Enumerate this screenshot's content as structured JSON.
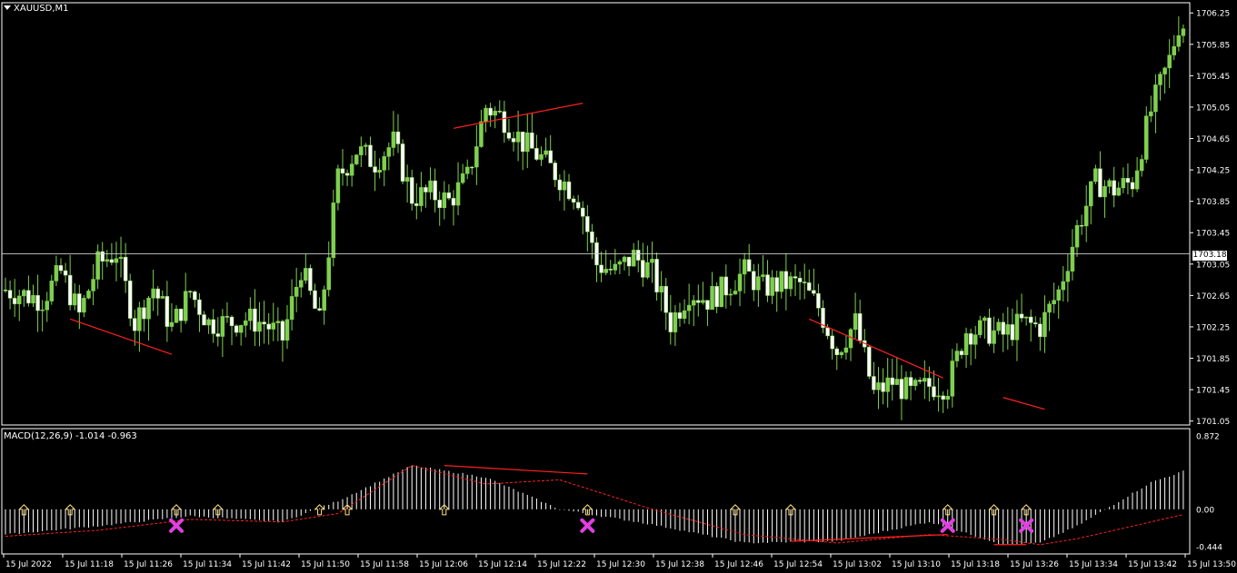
{
  "window": {
    "symbol_title": "XAUUSD,M1",
    "macd_title": "MACD(12,26,9) -1.014 -0.963",
    "current_price_label": "1703.18"
  },
  "colors": {
    "background": "#000000",
    "frame": "#ffffff",
    "grid": "#ffffff",
    "bull_candle": "#7fd04f",
    "bear_candle": "#ffffff",
    "wick": "#7fd04f",
    "divergence_line": "#ff2020",
    "signal_line": "#ff2020",
    "histogram": "#ffffff",
    "cross_marker": "#e040e0",
    "arrow_marker": "#ffe080",
    "current_price_line": "#cccccc"
  },
  "chart_data": [
    {
      "type": "candlestick",
      "title": "XAUUSD,M1",
      "y_ticks": [
        "1706.25",
        "1705.85",
        "1705.45",
        "1705.05",
        "1704.65",
        "1704.25",
        "1703.85",
        "1703.45",
        "1703.05",
        "1702.65",
        "1702.25",
        "1701.85",
        "1701.45",
        "1701.05"
      ],
      "ylim": [
        1701.0,
        1706.38
      ],
      "current_price": 1703.18,
      "x_tick_labels": [
        "15 Jul 2022",
        "15 Jul 11:18",
        "15 Jul 11:26",
        "15 Jul 11:34",
        "15 Jul 11:42",
        "15 Jul 11:50",
        "15 Jul 11:58",
        "15 Jul 12:06",
        "15 Jul 12:14",
        "15 Jul 12:22",
        "15 Jul 12:30",
        "15 Jul 12:38",
        "15 Jul 12:46",
        "15 Jul 12:54",
        "15 Jul 13:02",
        "15 Jul 13:10",
        "15 Jul 13:18",
        "15 Jul 13:26",
        "15 Jul 13:34",
        "15 Jul 13:42",
        "15 Jul 13:50"
      ],
      "anchors": [
        [
          0,
          1702.72
        ],
        [
          8,
          1702.6
        ],
        [
          12,
          1702.95
        ],
        [
          16,
          1702.4
        ],
        [
          20,
          1703.05
        ],
        [
          24,
          1703.2
        ],
        [
          28,
          1702.3
        ],
        [
          32,
          1702.75
        ],
        [
          36,
          1702.25
        ],
        [
          40,
          1702.7
        ],
        [
          44,
          1702.3
        ],
        [
          48,
          1702.3
        ],
        [
          52,
          1702.35
        ],
        [
          56,
          1702.3
        ],
        [
          60,
          1702.1
        ],
        [
          64,
          1703.0
        ],
        [
          68,
          1702.3
        ],
        [
          72,
          1704.15
        ],
        [
          76,
          1704.5
        ],
        [
          80,
          1704.35
        ],
        [
          84,
          1704.6
        ],
        [
          88,
          1703.9
        ],
        [
          92,
          1703.95
        ],
        [
          96,
          1703.85
        ],
        [
          100,
          1704.15
        ],
        [
          104,
          1705.05
        ],
        [
          108,
          1704.9
        ],
        [
          112,
          1704.6
        ],
        [
          116,
          1704.4
        ],
        [
          120,
          1704.15
        ],
        [
          124,
          1703.9
        ],
        [
          128,
          1703.05
        ],
        [
          132,
          1702.95
        ],
        [
          136,
          1703.15
        ],
        [
          140,
          1702.95
        ],
        [
          144,
          1702.3
        ],
        [
          148,
          1702.7
        ],
        [
          152,
          1702.6
        ],
        [
          156,
          1702.75
        ],
        [
          160,
          1702.95
        ],
        [
          164,
          1702.75
        ],
        [
          168,
          1702.8
        ],
        [
          172,
          1702.8
        ],
        [
          176,
          1702.5
        ],
        [
          180,
          1701.95
        ],
        [
          184,
          1702.3
        ],
        [
          188,
          1701.4
        ],
        [
          192,
          1701.55
        ],
        [
          196,
          1701.4
        ],
        [
          200,
          1701.5
        ],
        [
          204,
          1701.5
        ],
        [
          208,
          1702.2
        ],
        [
          212,
          1702.2
        ],
        [
          216,
          1702.15
        ],
        [
          220,
          1702.3
        ],
        [
          224,
          1702.25
        ],
        [
          228,
          1702.7
        ],
        [
          232,
          1703.5
        ],
        [
          236,
          1704.1
        ],
        [
          240,
          1704.0
        ],
        [
          244,
          1704.1
        ],
        [
          248,
          1705.0
        ],
        [
          252,
          1705.65
        ],
        [
          254,
          1706.1
        ]
      ],
      "divergence_lines": [
        [
          [
            14,
            1702.35
          ],
          [
            36,
            1701.9
          ]
        ],
        [
          [
            97,
            1704.78
          ],
          [
            125,
            1705.1
          ]
        ],
        [
          [
            174,
            1702.35
          ],
          [
            203,
            1701.6
          ]
        ],
        [
          [
            216,
            1701.35
          ],
          [
            225,
            1701.2
          ]
        ]
      ]
    },
    {
      "type": "histogram",
      "title": "MACD(12,26,9)",
      "main_value": -1.014,
      "signal_value": -0.963,
      "y_ticks": [
        "0.872",
        "0.00",
        "-0.444"
      ],
      "ylim": [
        -0.444,
        0.872
      ],
      "macd_anchors": [
        [
          0,
          -0.3
        ],
        [
          20,
          -0.2
        ],
        [
          40,
          -0.08
        ],
        [
          60,
          -0.15
        ],
        [
          72,
          0.1
        ],
        [
          88,
          0.52
        ],
        [
          104,
          0.38
        ],
        [
          120,
          0.0
        ],
        [
          140,
          -0.18
        ],
        [
          160,
          -0.4
        ],
        [
          180,
          -0.38
        ],
        [
          200,
          -0.15
        ],
        [
          216,
          -0.42
        ],
        [
          224,
          -0.4
        ],
        [
          232,
          -0.2
        ],
        [
          248,
          0.32
        ],
        [
          264,
          0.62
        ],
        [
          272,
          0.85
        ]
      ],
      "signal_anchors": [
        [
          0,
          -0.32
        ],
        [
          20,
          -0.25
        ],
        [
          40,
          -0.12
        ],
        [
          60,
          -0.15
        ],
        [
          72,
          -0.05
        ],
        [
          88,
          0.52
        ],
        [
          104,
          0.3
        ],
        [
          120,
          0.35
        ],
        [
          140,
          0.0
        ],
        [
          160,
          -0.3
        ],
        [
          180,
          -0.4
        ],
        [
          200,
          -0.3
        ],
        [
          216,
          -0.36
        ],
        [
          224,
          -0.42
        ],
        [
          232,
          -0.35
        ],
        [
          248,
          -0.15
        ],
        [
          264,
          0.05
        ],
        [
          272,
          0.42
        ]
      ],
      "arrow_markers_x": [
        4,
        14,
        37,
        46,
        68,
        74,
        95,
        126,
        158,
        170,
        204,
        214,
        221
      ],
      "cross_markers_x": [
        37,
        126,
        204,
        221
      ],
      "divergence_lines": [
        [
          [
            95,
            0.52
          ],
          [
            126,
            0.42
          ]
        ],
        [
          [
            170,
            -0.38
          ],
          [
            204,
            -0.3
          ]
        ],
        [
          [
            214,
            -0.42
          ],
          [
            221,
            -0.42
          ]
        ]
      ]
    }
  ]
}
